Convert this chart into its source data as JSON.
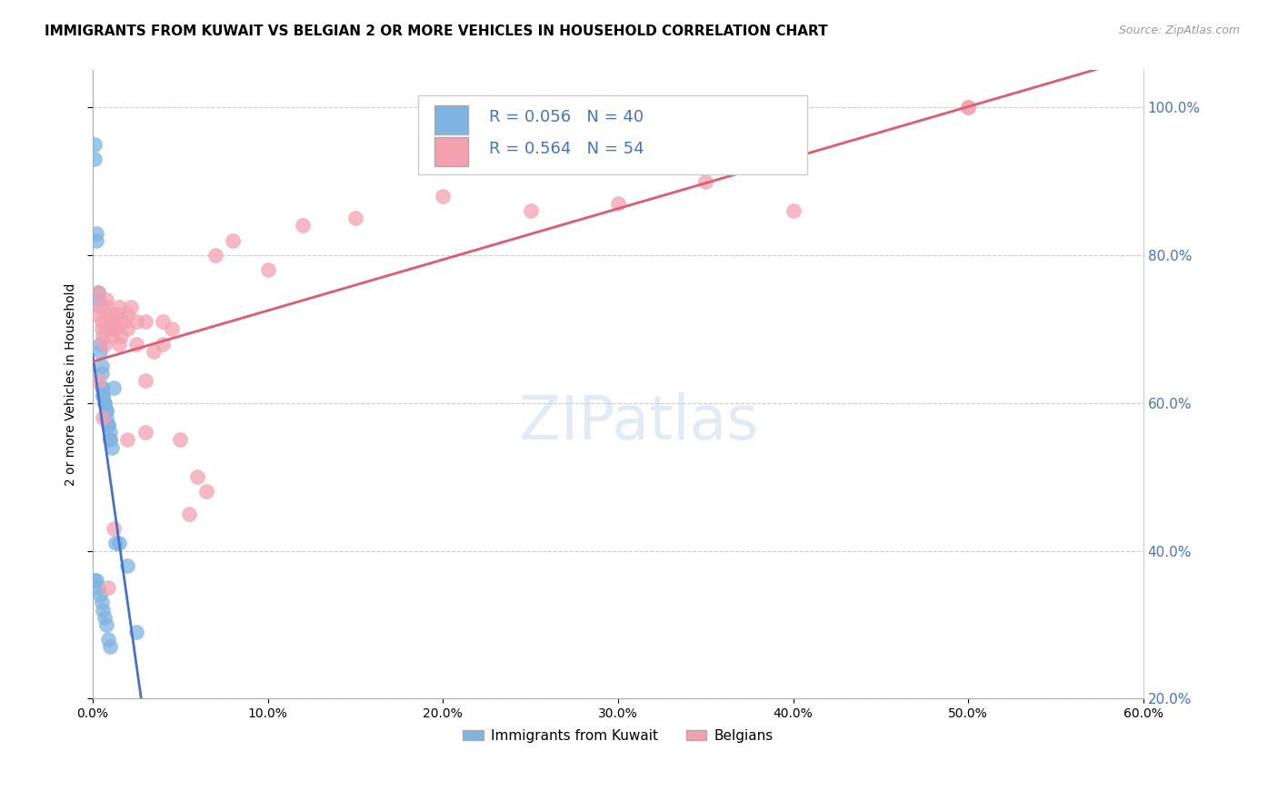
{
  "title": "IMMIGRANTS FROM KUWAIT VS BELGIAN 2 OR MORE VEHICLES IN HOUSEHOLD CORRELATION CHART",
  "source": "Source: ZipAtlas.com",
  "ylabel": "2 or more Vehicles in Household",
  "legend_label_blue": "Immigrants from Kuwait",
  "legend_label_pink": "Belgians",
  "r_blue": 0.056,
  "n_blue": 40,
  "r_pink": 0.564,
  "n_pink": 54,
  "xlim": [
    0.0,
    0.6
  ],
  "ylim": [
    0.2,
    1.05
  ],
  "color_blue": "#7EB4E2",
  "color_pink": "#F4A0B0",
  "color_blue_line": "#4472C4",
  "color_pink_line": "#E05C72",
  "color_axis_labels": "#4472C4",
  "blue_x": [
    0.001,
    0.001,
    0.002,
    0.002,
    0.003,
    0.003,
    0.004,
    0.004,
    0.005,
    0.005,
    0.005,
    0.006,
    0.006,
    0.006,
    0.007,
    0.007,
    0.008,
    0.008,
    0.008,
    0.009,
    0.009,
    0.01,
    0.01,
    0.01,
    0.011,
    0.012,
    0.013,
    0.015,
    0.02,
    0.025,
    0.001,
    0.002,
    0.003,
    0.004,
    0.005,
    0.006,
    0.007,
    0.008,
    0.009,
    0.01
  ],
  "blue_y": [
    0.95,
    0.93,
    0.83,
    0.82,
    0.75,
    0.74,
    0.68,
    0.67,
    0.65,
    0.64,
    0.62,
    0.62,
    0.61,
    0.61,
    0.6,
    0.6,
    0.59,
    0.59,
    0.58,
    0.57,
    0.57,
    0.56,
    0.55,
    0.55,
    0.54,
    0.62,
    0.41,
    0.41,
    0.38,
    0.29,
    0.36,
    0.36,
    0.35,
    0.34,
    0.33,
    0.32,
    0.31,
    0.3,
    0.28,
    0.27
  ],
  "pink_x": [
    0.002,
    0.003,
    0.004,
    0.005,
    0.005,
    0.006,
    0.007,
    0.008,
    0.008,
    0.009,
    0.01,
    0.01,
    0.011,
    0.012,
    0.013,
    0.013,
    0.014,
    0.015,
    0.015,
    0.016,
    0.018,
    0.02,
    0.02,
    0.022,
    0.025,
    0.03,
    0.03,
    0.035,
    0.04,
    0.045,
    0.05,
    0.055,
    0.06,
    0.065,
    0.07,
    0.08,
    0.1,
    0.12,
    0.15,
    0.2,
    0.25,
    0.3,
    0.35,
    0.4,
    0.003,
    0.006,
    0.009,
    0.012,
    0.02,
    0.025,
    0.03,
    0.04,
    0.5,
    0.5
  ],
  "pink_y": [
    0.72,
    0.75,
    0.73,
    0.71,
    0.7,
    0.69,
    0.68,
    0.74,
    0.73,
    0.72,
    0.71,
    0.7,
    0.69,
    0.7,
    0.71,
    0.7,
    0.72,
    0.73,
    0.68,
    0.69,
    0.71,
    0.7,
    0.72,
    0.73,
    0.68,
    0.71,
    0.63,
    0.67,
    0.68,
    0.7,
    0.55,
    0.45,
    0.5,
    0.48,
    0.8,
    0.82,
    0.78,
    0.84,
    0.85,
    0.88,
    0.86,
    0.87,
    0.9,
    0.86,
    0.63,
    0.58,
    0.35,
    0.43,
    0.55,
    0.71,
    0.56,
    0.71,
    1.0,
    1.0
  ]
}
